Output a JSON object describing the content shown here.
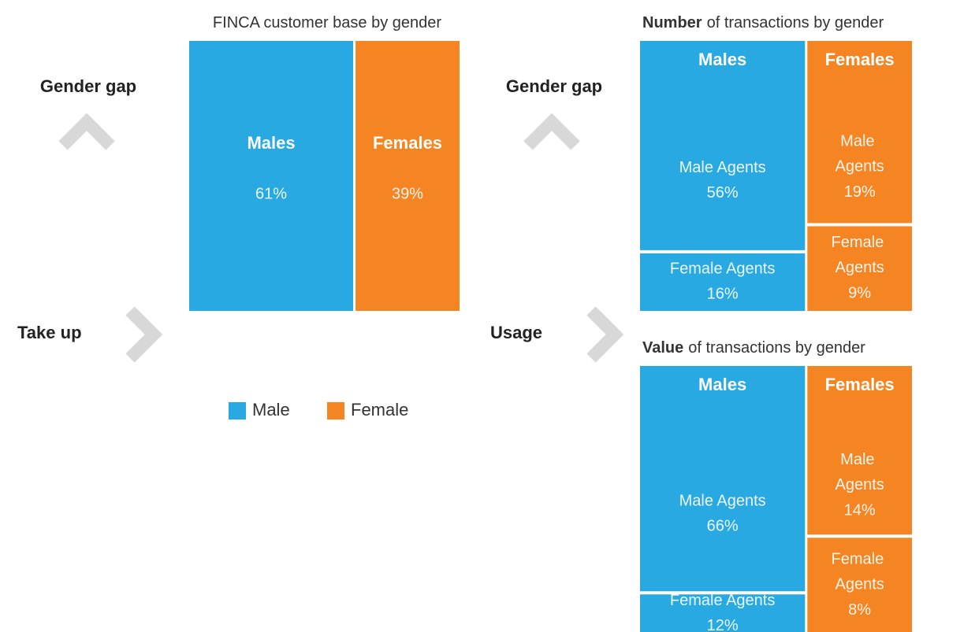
{
  "annotations": {
    "left_up": "Gender gap",
    "left_right": "Take up",
    "right_up": "Gender gap",
    "right_right": "Usage"
  },
  "chart_data": [
    {
      "type": "mosaic",
      "title": "FINCA customer base by gender",
      "categories": [
        "Males",
        "Females"
      ],
      "values": [
        61,
        39
      ],
      "value_labels": [
        "61%",
        "39%"
      ],
      "colors": [
        "#29a9e1",
        "#f58522"
      ],
      "legend": [
        "Male",
        "Female"
      ]
    },
    {
      "type": "mosaic",
      "title_bold": "Number",
      "title": "of transactions by gender",
      "categories": [
        "Males",
        "Females"
      ],
      "colors": [
        "#29a9e1",
        "#f58522"
      ],
      "series": [
        {
          "name": "Male Agents",
          "values": [
            56,
            19
          ],
          "value_labels": [
            "56%",
            "19%"
          ]
        },
        {
          "name": "Female Agents",
          "values": [
            16,
            9
          ],
          "value_labels": [
            "16%",
            "9%"
          ]
        }
      ]
    },
    {
      "type": "mosaic",
      "title_bold": "Value",
      "title": "of transactions by gender",
      "categories": [
        "Males",
        "Females"
      ],
      "colors": [
        "#29a9e1",
        "#f58522"
      ],
      "series": [
        {
          "name": "Male Agents",
          "values": [
            66,
            14
          ],
          "value_labels": [
            "66%",
            "14%"
          ]
        },
        {
          "name": "Female Agents",
          "values": [
            12,
            8
          ],
          "value_labels": [
            "12%",
            "8%"
          ]
        }
      ]
    }
  ]
}
